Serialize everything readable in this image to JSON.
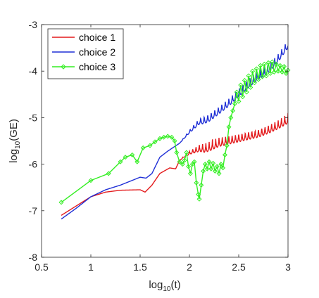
{
  "chart_data": {
    "type": "line",
    "xlabel": {
      "base": "log",
      "sub": "10",
      "rest": "(t)"
    },
    "ylabel": {
      "base": "log",
      "sub": "10",
      "rest": "(GE)"
    },
    "xlim": [
      0.5,
      3
    ],
    "ylim": [
      -8,
      -3
    ],
    "xticks": [
      0.5,
      1,
      1.5,
      2,
      2.5,
      3
    ],
    "xtick_labels": [
      "0.5",
      "1",
      "1.5",
      "2",
      "2.5",
      "3"
    ],
    "yticks": [
      -8,
      -7,
      -6,
      -5,
      -4,
      -3
    ],
    "ytick_labels": [
      "-8",
      "-7",
      "-6",
      "-5",
      "-4",
      "-3"
    ],
    "grid": false,
    "legend_position": "top-left",
    "series": [
      {
        "name": "choice 1",
        "color": "#e31a1c",
        "marker": "none",
        "trend": [
          [
            0.7,
            -7.1
          ],
          [
            0.85,
            -6.9
          ],
          [
            1.0,
            -6.7
          ],
          [
            1.15,
            -6.6
          ],
          [
            1.3,
            -6.56
          ],
          [
            1.5,
            -6.55
          ],
          [
            1.55,
            -6.6
          ],
          [
            1.62,
            -6.45
          ],
          [
            1.7,
            -6.2
          ],
          [
            1.8,
            -6.08
          ],
          [
            1.86,
            -6.1
          ],
          [
            1.9,
            -5.92
          ],
          [
            1.95,
            -5.8
          ],
          [
            2.0,
            -5.7
          ],
          [
            2.1,
            -5.55
          ],
          [
            2.2,
            -5.5
          ],
          [
            2.3,
            -5.4
          ],
          [
            2.4,
            -5.35
          ],
          [
            2.5,
            -5.3
          ],
          [
            2.6,
            -5.25
          ],
          [
            2.7,
            -5.2
          ],
          [
            2.8,
            -5.12
          ],
          [
            2.9,
            -5.02
          ],
          [
            3.0,
            -4.9
          ]
        ],
        "oscillation": {
          "start": 1.9,
          "amplitude": 0.22,
          "frequency": 30
        }
      },
      {
        "name": "choice 2",
        "color": "#1f2fd6",
        "marker": "none",
        "trend": [
          [
            0.7,
            -7.18
          ],
          [
            0.85,
            -6.95
          ],
          [
            1.0,
            -6.7
          ],
          [
            1.15,
            -6.55
          ],
          [
            1.3,
            -6.45
          ],
          [
            1.5,
            -6.28
          ],
          [
            1.56,
            -6.3
          ],
          [
            1.62,
            -6.2
          ],
          [
            1.7,
            -5.85
          ],
          [
            1.78,
            -5.72
          ],
          [
            1.85,
            -5.62
          ],
          [
            1.9,
            -5.55
          ],
          [
            2.0,
            -5.25
          ],
          [
            2.1,
            -4.98
          ],
          [
            2.2,
            -4.88
          ],
          [
            2.3,
            -4.72
          ],
          [
            2.4,
            -4.55
          ],
          [
            2.5,
            -4.35
          ],
          [
            2.6,
            -4.15
          ],
          [
            2.7,
            -3.98
          ],
          [
            2.8,
            -3.85
          ],
          [
            2.9,
            -3.6
          ],
          [
            3.0,
            -3.3
          ]
        ],
        "oscillation": {
          "start": 1.9,
          "amplitude": 0.2,
          "frequency": 28
        }
      },
      {
        "name": "choice 3",
        "color": "#33ee22",
        "marker": "diamond",
        "points": [
          [
            0.7,
            -6.82
          ],
          [
            1.0,
            -6.35
          ],
          [
            1.18,
            -6.2
          ],
          [
            1.3,
            -5.95
          ],
          [
            1.35,
            -5.85
          ],
          [
            1.42,
            -5.8
          ],
          [
            1.47,
            -5.95
          ],
          [
            1.53,
            -5.65
          ],
          [
            1.6,
            -5.6
          ],
          [
            1.65,
            -5.52
          ],
          [
            1.7,
            -5.45
          ],
          [
            1.74,
            -5.42
          ],
          [
            1.78,
            -5.4
          ],
          [
            1.82,
            -5.42
          ],
          [
            1.85,
            -5.5
          ],
          [
            1.87,
            -5.75
          ],
          [
            1.9,
            -5.95
          ],
          [
            1.93,
            -6.0
          ],
          [
            1.95,
            -5.92
          ],
          [
            1.97,
            -5.75
          ],
          [
            1.99,
            -6.05
          ],
          [
            2.01,
            -6.2
          ],
          [
            2.03,
            -6.0
          ],
          [
            2.05,
            -5.95
          ],
          [
            2.07,
            -6.4
          ],
          [
            2.09,
            -6.65
          ],
          [
            2.1,
            -6.75
          ],
          [
            2.12,
            -6.45
          ],
          [
            2.14,
            -6.15
          ],
          [
            2.16,
            -6.0
          ],
          [
            2.18,
            -6.1
          ],
          [
            2.2,
            -5.95
          ],
          [
            2.22,
            -6.1
          ],
          [
            2.24,
            -5.98
          ],
          [
            2.26,
            -6.15
          ],
          [
            2.28,
            -6.05
          ],
          [
            2.3,
            -6.2
          ],
          [
            2.32,
            -6.0
          ],
          [
            2.34,
            -6.08
          ],
          [
            2.36,
            -5.8
          ],
          [
            2.38,
            -5.6
          ],
          [
            2.4,
            -5.2
          ],
          [
            2.42,
            -5.0
          ],
          [
            2.44,
            -4.85
          ],
          [
            2.46,
            -4.7
          ],
          [
            2.48,
            -4.45
          ],
          [
            2.5,
            -4.65
          ],
          [
            2.52,
            -4.3
          ],
          [
            2.54,
            -4.55
          ],
          [
            2.56,
            -4.2
          ],
          [
            2.58,
            -4.45
          ],
          [
            2.6,
            -4.1
          ],
          [
            2.62,
            -4.35
          ],
          [
            2.64,
            -4.0
          ],
          [
            2.66,
            -4.25
          ],
          [
            2.68,
            -3.95
          ],
          [
            2.7,
            -4.18
          ],
          [
            2.72,
            -3.88
          ],
          [
            2.74,
            -4.12
          ],
          [
            2.76,
            -3.85
          ],
          [
            2.78,
            -4.1
          ],
          [
            2.8,
            -3.82
          ],
          [
            2.82,
            -4.05
          ],
          [
            2.84,
            -3.8
          ],
          [
            2.86,
            -4.02
          ],
          [
            2.88,
            -3.85
          ],
          [
            2.9,
            -4.0
          ],
          [
            2.92,
            -3.88
          ],
          [
            2.94,
            -4.02
          ],
          [
            2.96,
            -3.9
          ],
          [
            2.98,
            -4.05
          ],
          [
            3.0,
            -3.98
          ]
        ]
      }
    ]
  }
}
